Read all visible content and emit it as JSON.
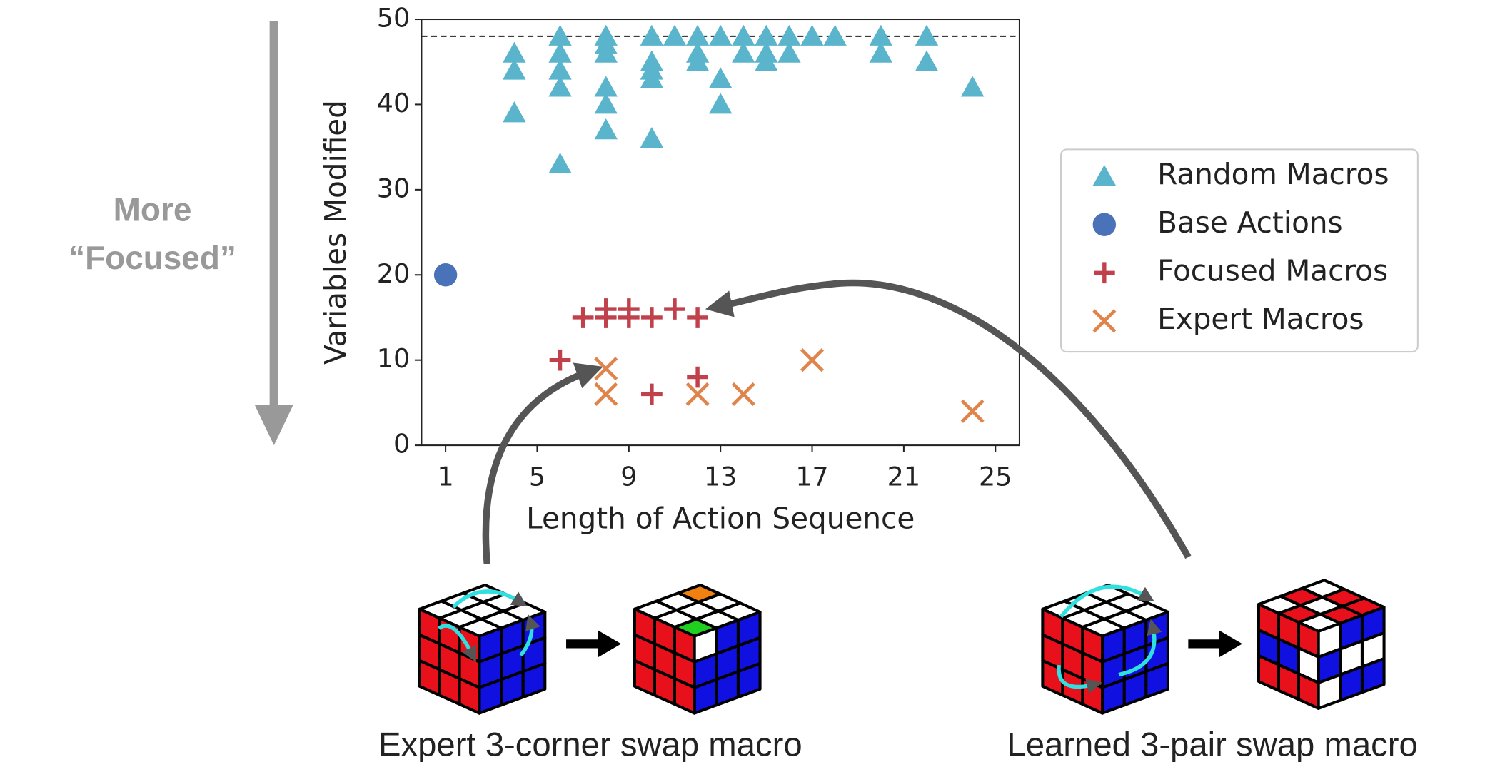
{
  "chart_data": {
    "type": "scatter",
    "x_label": "Length of Action Sequence",
    "y_label": "Variables Modified",
    "xlim": [
      -0.05,
      26.05
    ],
    "ylim": [
      0,
      50
    ],
    "xticks": [
      1,
      5,
      9,
      13,
      17,
      21,
      25
    ],
    "yticks": [
      0,
      10,
      20,
      30,
      40,
      50
    ],
    "hline": 48,
    "legend": "outside right",
    "series": [
      {
        "name": "Random Macros",
        "color": "#5ab4cc",
        "marker": "triangle",
        "x": [
          4,
          4,
          4,
          6,
          6,
          6,
          6,
          6,
          8,
          8,
          8,
          8,
          8,
          8,
          10,
          10,
          10,
          10,
          10,
          11,
          12,
          12,
          12,
          13,
          13,
          13,
          14,
          14,
          15,
          15,
          15,
          16,
          16,
          17,
          18,
          20,
          20,
          22,
          22,
          24
        ],
        "values": [
          46,
          44,
          39,
          48,
          46,
          44,
          42,
          33,
          48,
          47,
          46,
          42,
          40,
          37,
          48,
          45,
          44,
          43,
          36,
          48,
          48,
          46,
          45,
          48,
          43,
          40,
          48,
          46,
          48,
          46,
          45,
          48,
          46,
          48,
          48,
          48,
          46,
          48,
          45,
          42
        ]
      },
      {
        "name": "Base Actions",
        "color": "#4a72b8",
        "marker": "circle",
        "x": [
          1
        ],
        "values": [
          20
        ]
      },
      {
        "name": "Focused Macros",
        "color": "#c0404c",
        "marker": "plus",
        "x": [
          6,
          7,
          8,
          8,
          9,
          9,
          10,
          11,
          12,
          12,
          10
        ],
        "values": [
          10,
          15,
          15,
          16,
          15,
          16,
          15,
          16,
          15,
          8,
          6
        ]
      },
      {
        "name": "Expert Macros",
        "color": "#e0844c",
        "marker": "cross",
        "x": [
          8,
          8,
          12,
          14,
          17,
          24
        ],
        "values": [
          9,
          6,
          6,
          6,
          10,
          4
        ]
      }
    ],
    "annotations": {
      "side_label": [
        "More",
        "“Focused”"
      ],
      "captions": [
        "Expert 3-corner swap macro",
        "Learned 3-pair swap macro"
      ]
    }
  }
}
